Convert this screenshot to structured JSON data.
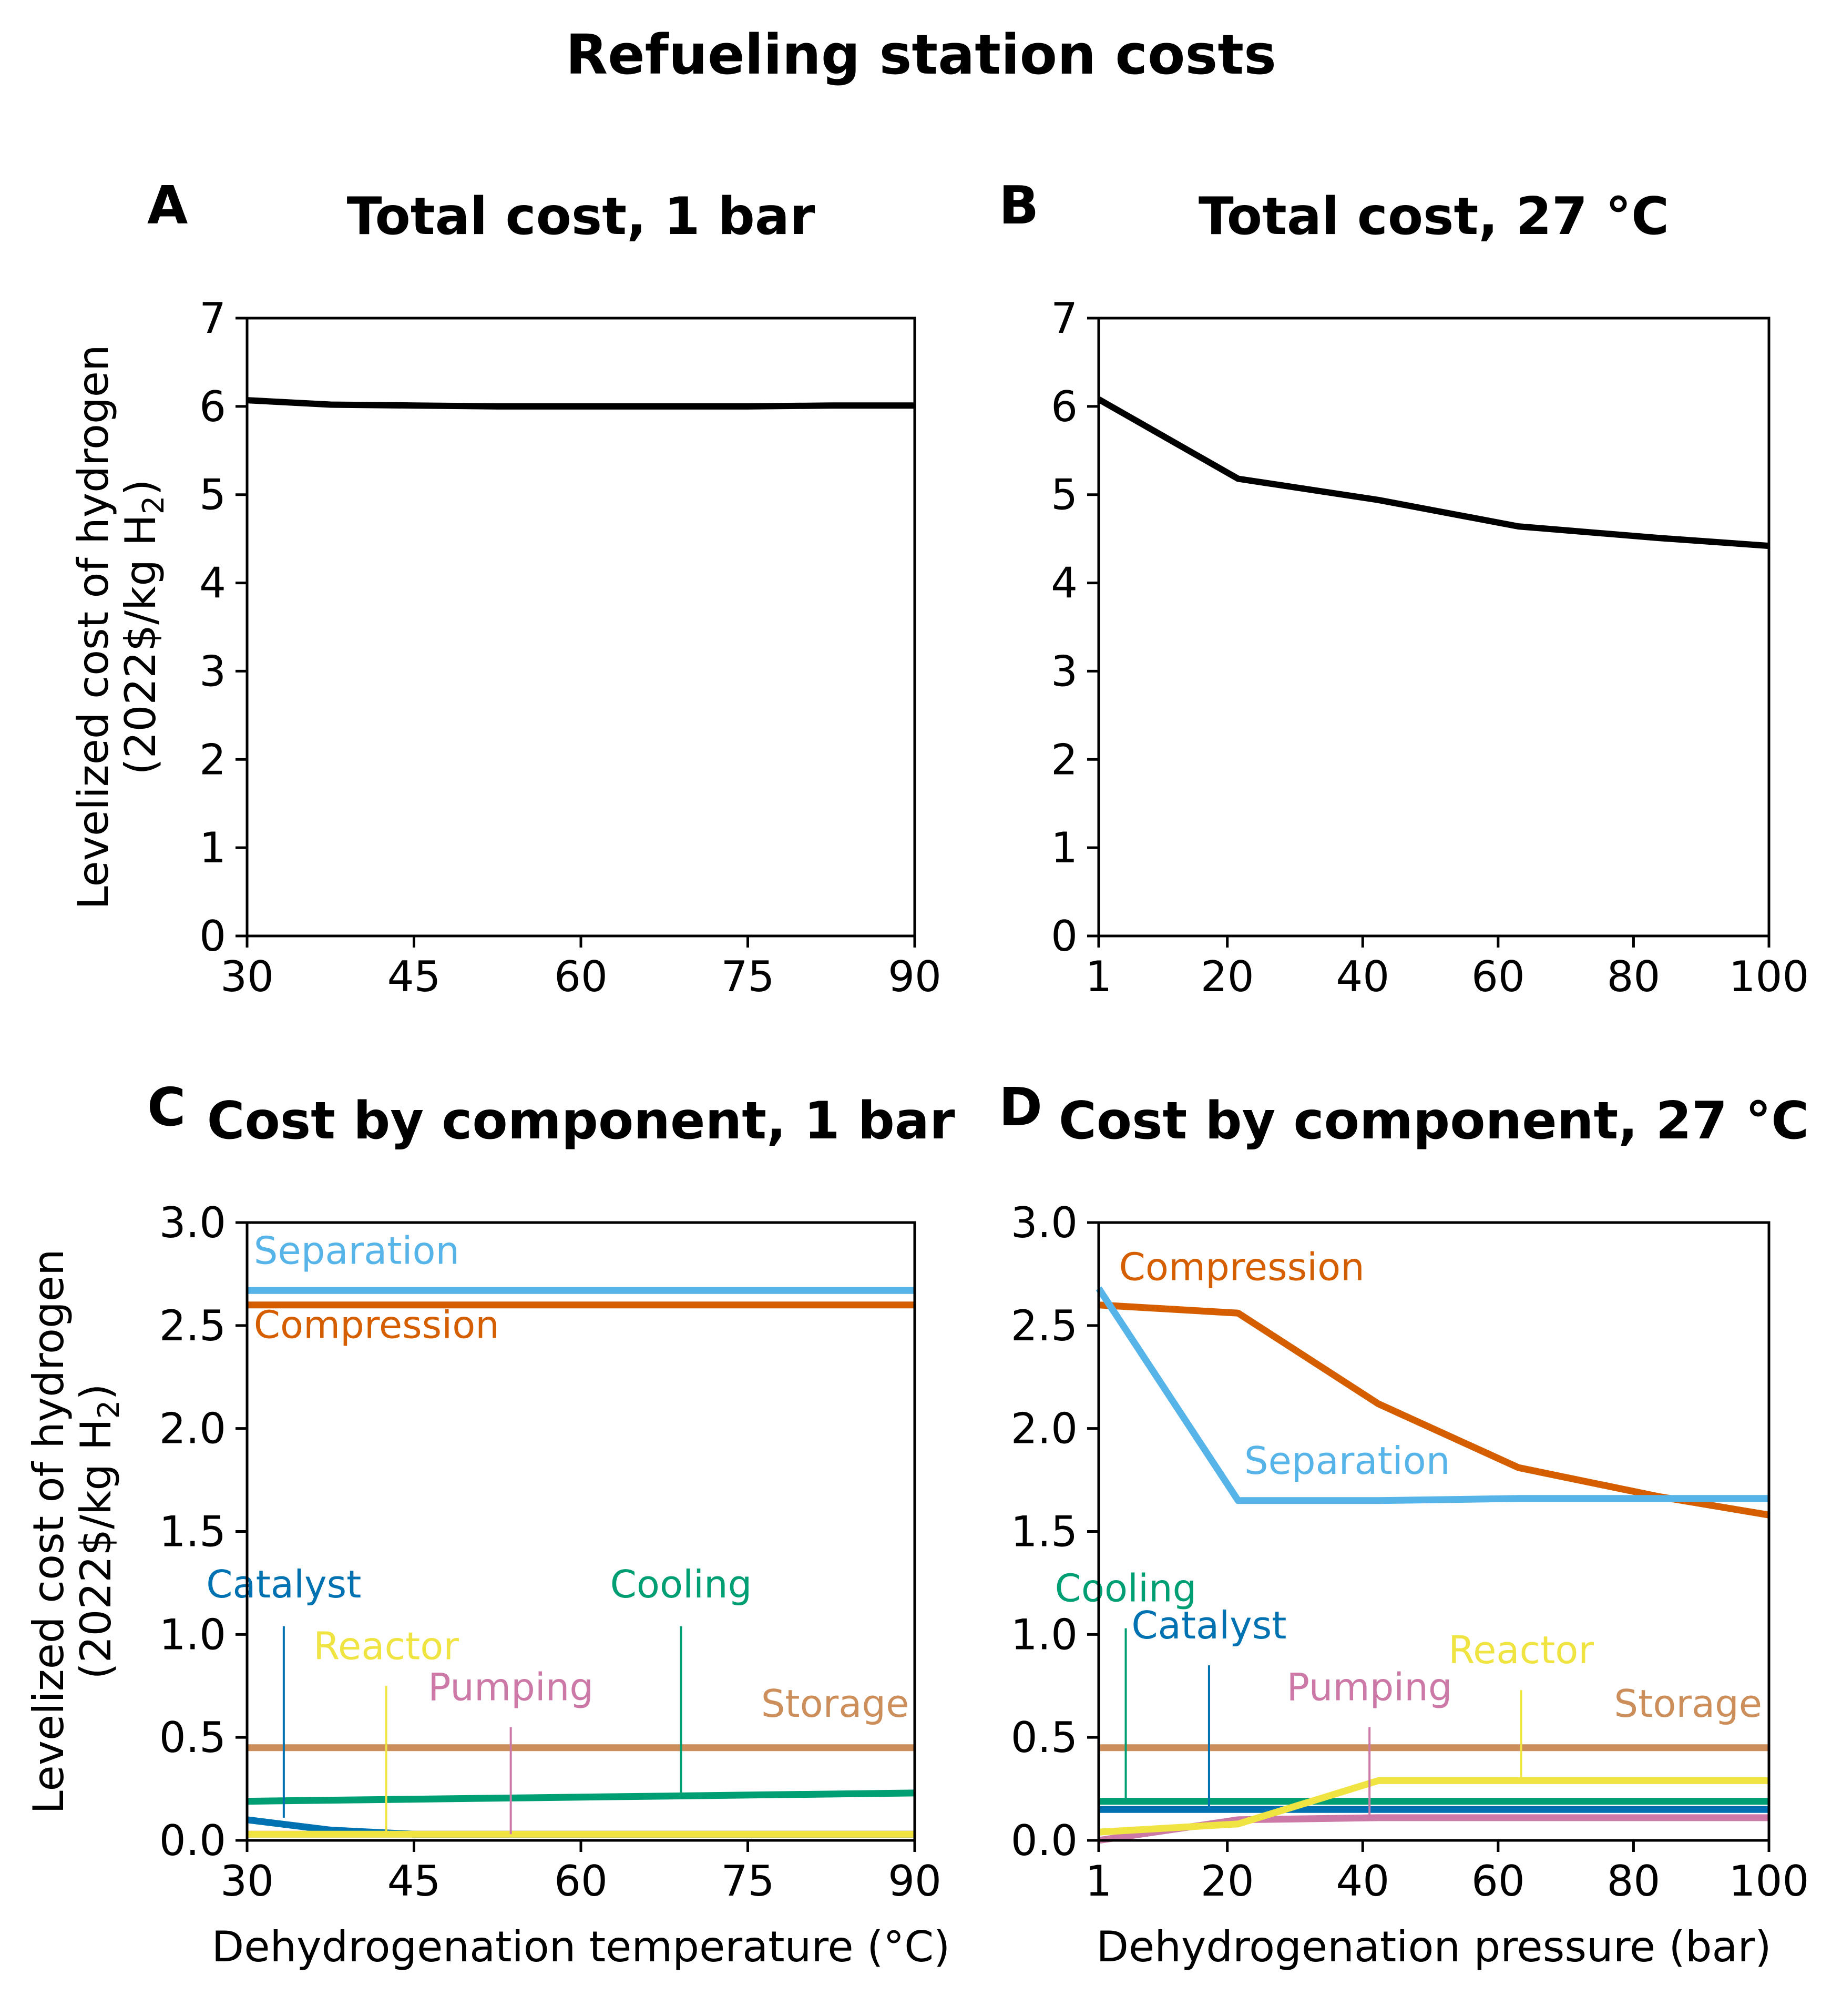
{
  "figure_title": "Refueling station costs",
  "colors": {
    "total": "#000000",
    "Separation": "#56B4E9",
    "Compression": "#D55E00",
    "Storage": "#CC8E5A",
    "Cooling": "#009E73",
    "Catalyst": "#0072B2",
    "Reactor": "#F0E442",
    "Pumping": "#CC79A7"
  },
  "chart_data": [
    {
      "panel": "A",
      "type": "line",
      "title": "Total cost, 1 bar",
      "xlabel": "",
      "ylabel": "Levelized cost of hydrogen",
      "ylabel_units_prefix": "(2022$/kg H",
      "ylabel_units_sub": "2",
      "ylabel_units_suffix": ")",
      "xlim": [
        30,
        90
      ],
      "ylim": [
        0,
        7
      ],
      "xticks": [
        30,
        45,
        60,
        75,
        90
      ],
      "yticks": [
        0,
        1,
        2,
        3,
        4,
        5,
        6,
        7
      ],
      "ytick_labels": [
        "0",
        "1",
        "2",
        "3",
        "4",
        "5",
        "6",
        "7"
      ],
      "series": [
        {
          "key": "total",
          "x": [
            30,
            37.5,
            45,
            52.5,
            60,
            67.5,
            75,
            82.5,
            90
          ],
          "y": [
            6.07,
            6.02,
            6.01,
            6.0,
            6.0,
            6.0,
            6.0,
            6.01,
            6.01
          ]
        }
      ],
      "annotations": []
    },
    {
      "panel": "B",
      "type": "line",
      "title": "Total cost, 27 °C",
      "xlabel": "",
      "ylabel": "",
      "xlim": [
        1,
        100
      ],
      "ylim": [
        0,
        7
      ],
      "xticks": [
        1,
        20,
        40,
        60,
        80,
        100
      ],
      "yticks": [
        0,
        1,
        2,
        3,
        4,
        5,
        6,
        7
      ],
      "ytick_labels": [
        "0",
        "1",
        "2",
        "3",
        "4",
        "5",
        "6",
        "7"
      ],
      "series": [
        {
          "key": "total",
          "x": [
            1,
            21.6,
            42.3,
            63.0,
            83.6,
            100
          ],
          "y": [
            6.08,
            5.18,
            4.94,
            4.64,
            4.51,
            4.42
          ]
        }
      ],
      "annotations": []
    },
    {
      "panel": "C",
      "type": "line",
      "title": "Cost by component, 1 bar",
      "xlabel": "Dehydrogenation temperature (°C)",
      "ylabel": "Levelized cost of hydrogen",
      "ylabel_units_prefix": "(2022$/kg H",
      "ylabel_units_sub": "2",
      "ylabel_units_suffix": ")",
      "xlim": [
        30,
        90
      ],
      "ylim": [
        0,
        3
      ],
      "xticks": [
        30,
        45,
        60,
        75,
        90
      ],
      "yticks": [
        0,
        0.5,
        1,
        1.5,
        2,
        2.5,
        3
      ],
      "ytick_labels": [
        "0.0",
        "0.5",
        "1.0",
        "1.5",
        "2.0",
        "2.5",
        "3.0"
      ],
      "series": [
        {
          "key": "Separation",
          "x": [
            30,
            90
          ],
          "y": [
            2.67,
            2.67
          ]
        },
        {
          "key": "Compression",
          "x": [
            30,
            90
          ],
          "y": [
            2.6,
            2.6
          ]
        },
        {
          "key": "Storage",
          "x": [
            30,
            90
          ],
          "y": [
            0.45,
            0.45
          ]
        },
        {
          "key": "Cooling",
          "x": [
            30,
            90
          ],
          "y": [
            0.19,
            0.23
          ]
        },
        {
          "key": "Pumping",
          "x": [
            30,
            90
          ],
          "y": [
            0.03,
            0.03
          ]
        },
        {
          "key": "Catalyst",
          "x": [
            30,
            37.5,
            45,
            52.5,
            60,
            90
          ],
          "y": [
            0.1,
            0.05,
            0.03,
            0.03,
            0.03,
            0.03
          ]
        },
        {
          "key": "Reactor",
          "x": [
            30,
            90
          ],
          "y": [
            0.03,
            0.03
          ]
        }
      ],
      "annotations": [
        {
          "key": "Separation",
          "text": "Separation",
          "x": 30.6,
          "y": 2.8
        },
        {
          "key": "Compression",
          "text": "Compression",
          "x": 30.6,
          "y": 2.44
        },
        {
          "key": "Catalyst",
          "text": "Catalyst",
          "x": 33.3,
          "y": 1.18,
          "line_x": 33.3,
          "line_from": 1.04,
          "line_to": 0.11
        },
        {
          "key": "Reactor",
          "text": "Reactor",
          "x": 42.5,
          "y": 0.88,
          "line_x": 42.5,
          "line_from": 0.75,
          "line_to": 0.04
        },
        {
          "key": "Pumping",
          "text": "Pumping",
          "x": 53.7,
          "y": 0.68,
          "line_x": 53.7,
          "line_from": 0.55,
          "line_to": 0.03
        },
        {
          "key": "Cooling",
          "text": "Cooling",
          "x": 69.0,
          "y": 1.18,
          "line_x": 69.0,
          "line_from": 1.04,
          "line_to": 0.22
        },
        {
          "key": "Storage",
          "text": "Storage",
          "x": 89.5,
          "y": 0.6,
          "anchor": "end"
        }
      ]
    },
    {
      "panel": "D",
      "type": "line",
      "title": "Cost by component, 27 °C",
      "xlabel": "Dehydrogenation pressure (bar)",
      "ylabel": "",
      "xlim": [
        1,
        100
      ],
      "ylim": [
        0,
        3
      ],
      "xticks": [
        1,
        20,
        40,
        60,
        80,
        100
      ],
      "yticks": [
        0,
        0.5,
        1,
        1.5,
        2,
        2.5,
        3
      ],
      "ytick_labels": [
        "0.0",
        "0.5",
        "1.0",
        "1.5",
        "2.0",
        "2.5",
        "3.0"
      ],
      "series": [
        {
          "key": "Compression",
          "x": [
            1,
            21.6,
            42.3,
            63.0,
            83.6,
            100
          ],
          "y": [
            2.6,
            2.56,
            2.12,
            1.81,
            1.67,
            1.58
          ]
        },
        {
          "key": "Separation",
          "x": [
            1,
            21.6,
            42.3,
            63.0,
            83.6,
            100
          ],
          "y": [
            2.68,
            1.65,
            1.65,
            1.66,
            1.66,
            1.66
          ]
        },
        {
          "key": "Storage",
          "x": [
            1,
            100
          ],
          "y": [
            0.45,
            0.45
          ]
        },
        {
          "key": "Cooling",
          "x": [
            1,
            100
          ],
          "y": [
            0.19,
            0.19
          ]
        },
        {
          "key": "Catalyst",
          "x": [
            1,
            100
          ],
          "y": [
            0.15,
            0.15
          ]
        },
        {
          "key": "Pumping",
          "x": [
            1,
            21.6,
            42.3,
            63.0,
            83.6,
            100
          ],
          "y": [
            0.0,
            0.1,
            0.11,
            0.11,
            0.11,
            0.11
          ]
        },
        {
          "key": "Reactor",
          "x": [
            1,
            21.6,
            42.3,
            63.0,
            83.6,
            100
          ],
          "y": [
            0.04,
            0.08,
            0.29,
            0.29,
            0.29,
            0.29
          ]
        }
      ],
      "annotations": [
        {
          "key": "Compression",
          "text": "Compression",
          "x": 4.0,
          "y": 2.72
        },
        {
          "key": "Separation",
          "text": "Separation",
          "x": 22.5,
          "y": 1.78
        },
        {
          "key": "Cooling",
          "text": "Cooling",
          "x": 5.0,
          "y": 1.16,
          "line_x": 5.0,
          "line_from": 1.03,
          "line_to": 0.2
        },
        {
          "key": "Catalyst",
          "text": "Catalyst",
          "x": 17.3,
          "y": 0.98,
          "line_x": 17.3,
          "line_from": 0.85,
          "line_to": 0.16
        },
        {
          "key": "Pumping",
          "text": "Pumping",
          "x": 41.0,
          "y": 0.68,
          "line_x": 41.0,
          "line_from": 0.55,
          "line_to": 0.11
        },
        {
          "key": "Reactor",
          "text": "Reactor",
          "x": 63.4,
          "y": 0.86,
          "line_x": 63.4,
          "line_from": 0.73,
          "line_to": 0.29
        },
        {
          "key": "Storage",
          "text": "Storage",
          "x": 99.0,
          "y": 0.6,
          "anchor": "end"
        }
      ]
    }
  ]
}
